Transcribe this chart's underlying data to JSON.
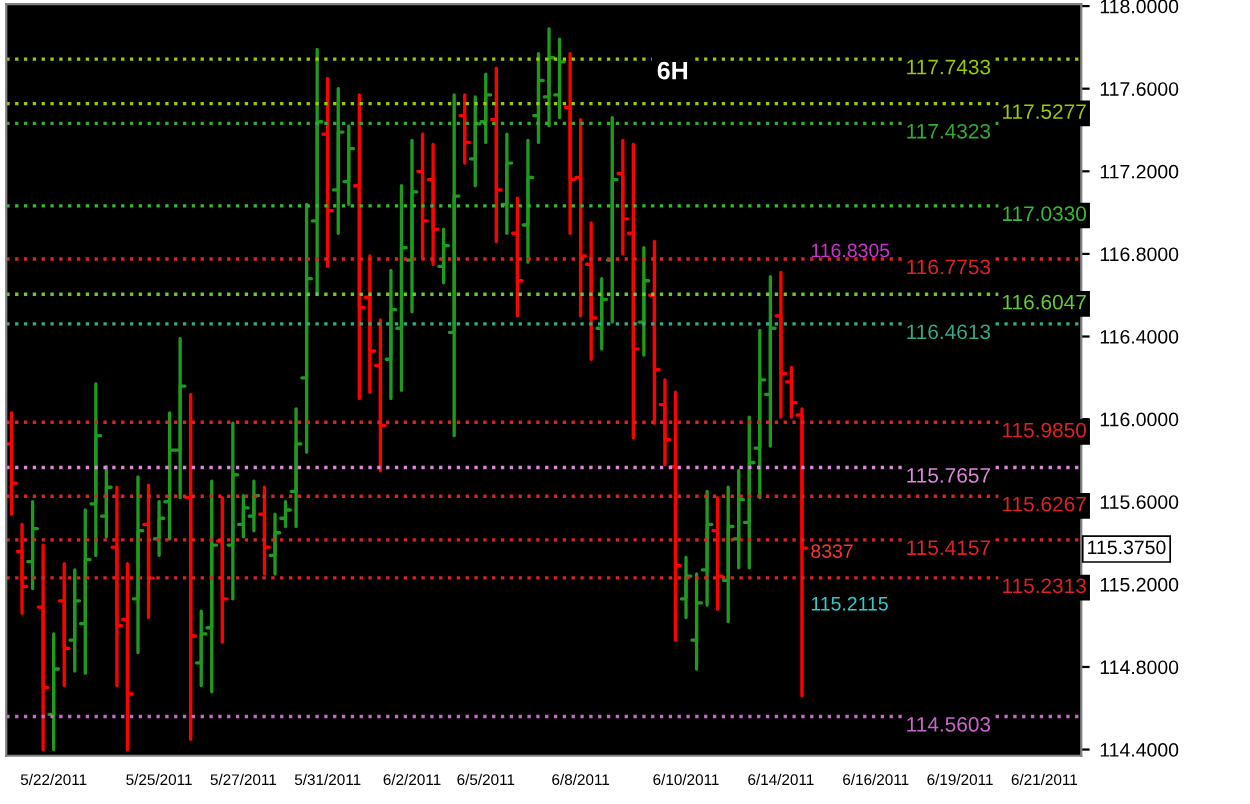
{
  "chart_data": {
    "type": "candlestick",
    "subtitle": "6H",
    "categories": [
      null,
      null,
      null,
      null,
      "5/22/2011",
      null,
      null,
      null,
      null,
      null,
      null,
      null,
      null,
      null,
      "5/25/2011",
      null,
      null,
      null,
      null,
      null,
      null,
      null,
      "5/27/2011",
      null,
      null,
      null,
      null,
      null,
      null,
      null,
      "5/31/2011",
      null,
      null,
      null,
      null,
      null,
      null,
      null,
      "6/2/2011",
      null,
      null,
      null,
      null,
      null,
      null,
      "6/5/2011",
      null,
      null,
      null,
      null,
      null,
      null,
      null,
      null,
      "6/8/2011",
      null,
      null,
      null,
      null,
      null,
      null,
      null,
      null,
      null,
      "6/10/2011",
      null,
      null,
      null,
      null,
      null,
      null,
      null,
      null,
      "6/14/2011",
      null,
      null,
      null,
      null,
      null,
      null,
      null,
      null,
      "6/16/2011",
      null,
      null,
      null,
      null,
      null,
      null,
      null,
      "6/19/2011",
      null,
      null,
      null,
      null,
      null,
      null,
      null,
      "6/21/2011",
      null,
      null,
      null
    ],
    "ohlc": [
      [
        115.88,
        116.03,
        115.54,
        115.69
      ],
      [
        115.36,
        115.49,
        115.06,
        115.19
      ],
      [
        115.31,
        115.6,
        115.18,
        115.47
      ],
      [
        115.09,
        115.39,
        114.4,
        114.7
      ],
      [
        114.57,
        114.96,
        114.4,
        114.79
      ],
      [
        115.12,
        115.3,
        114.71,
        114.89
      ],
      [
        114.93,
        115.27,
        114.78,
        115.12
      ],
      [
        115.01,
        115.56,
        114.77,
        115.32
      ],
      [
        115.59,
        116.17,
        115.34,
        115.92
      ],
      [
        115.53,
        115.77,
        115.43,
        115.67
      ],
      [
        115.38,
        115.67,
        114.71,
        115.0
      ],
      [
        115.03,
        115.3,
        114.4,
        114.67
      ],
      [
        115.13,
        115.72,
        114.87,
        115.46
      ],
      [
        115.49,
        115.68,
        115.04,
        115.23
      ],
      [
        115.42,
        115.6,
        115.34,
        115.52
      ],
      [
        115.6,
        116.03,
        115.42,
        115.85
      ],
      [
        115.85,
        116.39,
        115.62,
        116.16
      ],
      [
        115.62,
        116.12,
        114.45,
        114.95
      ],
      [
        114.82,
        115.07,
        114.71,
        114.96
      ],
      [
        114.99,
        115.7,
        114.68,
        115.39
      ],
      [
        115.41,
        115.62,
        114.92,
        115.13
      ],
      [
        115.39,
        115.98,
        115.13,
        115.73
      ],
      [
        115.49,
        115.63,
        115.43,
        115.57
      ],
      [
        115.53,
        115.7,
        115.46,
        115.63
      ],
      [
        115.54,
        115.67,
        115.25,
        115.38
      ],
      [
        115.34,
        115.54,
        115.25,
        115.45
      ],
      [
        115.52,
        115.6,
        115.48,
        115.56
      ],
      [
        115.65,
        116.05,
        115.48,
        115.88
      ],
      [
        116.2,
        117.04,
        115.84,
        116.68
      ],
      [
        116.96,
        117.79,
        116.61,
        117.44
      ],
      [
        117.38,
        117.65,
        116.74,
        117.01
      ],
      [
        117.11,
        117.6,
        116.9,
        117.39
      ],
      [
        117.15,
        117.42,
        117.04,
        117.31
      ],
      [
        117.13,
        117.57,
        116.1,
        116.54
      ],
      [
        116.59,
        116.79,
        116.13,
        116.33
      ],
      [
        116.26,
        116.48,
        115.75,
        115.97
      ],
      [
        116.29,
        116.72,
        116.1,
        116.53
      ],
      [
        116.44,
        117.13,
        116.14,
        116.83
      ],
      [
        116.77,
        117.35,
        116.52,
        117.1
      ],
      [
        117.2,
        117.38,
        116.78,
        116.96
      ],
      [
        117.16,
        117.33,
        116.75,
        116.92
      ],
      [
        116.74,
        116.92,
        116.66,
        116.84
      ],
      [
        116.42,
        117.57,
        115.92,
        117.08
      ],
      [
        117.47,
        117.57,
        117.24,
        117.34
      ],
      [
        117.26,
        117.56,
        117.13,
        117.43
      ],
      [
        117.44,
        117.67,
        117.34,
        117.57
      ],
      [
        117.45,
        117.7,
        116.86,
        117.11
      ],
      [
        117.04,
        117.38,
        116.9,
        117.24
      ],
      [
        116.9,
        117.07,
        116.5,
        116.67
      ],
      [
        116.94,
        117.35,
        116.76,
        117.17
      ],
      [
        117.47,
        117.77,
        117.34,
        117.64
      ],
      [
        117.56,
        117.89,
        117.42,
        117.75
      ],
      [
        117.57,
        117.84,
        117.46,
        117.73
      ],
      [
        117.51,
        117.77,
        116.9,
        117.16
      ],
      [
        117.17,
        117.45,
        116.5,
        116.79
      ],
      [
        116.75,
        116.95,
        116.29,
        116.49
      ],
      [
        116.44,
        116.68,
        116.34,
        116.58
      ],
      [
        116.77,
        117.46,
        116.47,
        117.16
      ],
      [
        117.19,
        117.35,
        116.8,
        116.97
      ],
      [
        116.9,
        117.33,
        115.91,
        116.34
      ],
      [
        116.47,
        116.83,
        116.31,
        116.67
      ],
      [
        116.6,
        116.86,
        115.98,
        116.24
      ],
      [
        116.07,
        116.19,
        115.78,
        115.9
      ],
      [
        115.77,
        116.13,
        114.93,
        115.29
      ],
      [
        115.13,
        115.33,
        115.04,
        115.24
      ],
      [
        114.93,
        115.25,
        114.79,
        115.11
      ],
      [
        115.27,
        115.65,
        115.1,
        115.49
      ],
      [
        115.46,
        115.62,
        115.08,
        115.24
      ],
      [
        115.22,
        115.67,
        115.02,
        115.48
      ],
      [
        115.42,
        115.75,
        115.28,
        115.61
      ],
      [
        115.5,
        116.01,
        115.28,
        115.79
      ],
      [
        115.86,
        116.43,
        115.62,
        116.19
      ],
      [
        116.12,
        116.69,
        115.87,
        116.44
      ],
      [
        116.5,
        116.71,
        116.01,
        116.22
      ],
      [
        116.18,
        116.25,
        116.01,
        116.08
      ],
      [
        116.02,
        116.05,
        114.66,
        115.375
      ],
      null,
      null,
      null,
      null,
      null,
      null,
      null,
      null,
      null,
      null,
      null,
      null,
      null,
      null,
      null,
      null,
      null,
      null,
      null,
      null,
      null,
      null,
      null,
      null,
      null,
      null
    ],
    "colors": [
      "#ff0000",
      "#ff0000",
      "#1f9a1f",
      "#ff0000",
      "#1f9a1f",
      "#ff0000",
      "#1f9a1f",
      "#1f9a1f",
      "#1f9a1f",
      "#1f9a1f",
      "#ff0000",
      "#ff0000",
      "#1f9a1f",
      "#ff0000",
      "#1f9a1f",
      "#1f9a1f",
      "#1f9a1f",
      "#ff0000",
      "#1f9a1f",
      "#1f9a1f",
      "#ff0000",
      "#1f9a1f",
      "#1f9a1f",
      "#1f9a1f",
      "#ff0000",
      "#1f9a1f",
      "#1f9a1f",
      "#1f9a1f",
      "#1f9a1f",
      "#1f9a1f",
      "#ff0000",
      "#1f9a1f",
      "#1f9a1f",
      "#ff0000",
      "#ff0000",
      "#ff0000",
      "#1f9a1f",
      "#1f9a1f",
      "#1f9a1f",
      "#ff0000",
      "#ff0000",
      "#1f9a1f",
      "#1f9a1f",
      "#ff0000",
      "#1f9a1f",
      "#1f9a1f",
      "#ff0000",
      "#1f9a1f",
      "#ff0000",
      "#1f9a1f",
      "#1f9a1f",
      "#1f9a1f",
      "#1f9a1f",
      "#ff0000",
      "#ff0000",
      "#ff0000",
      "#1f9a1f",
      "#1f9a1f",
      "#ff0000",
      "#ff0000",
      "#1f9a1f",
      "#ff0000",
      "#ff0000",
      "#ff0000",
      "#1f9a1f",
      "#1f9a1f",
      "#1f9a1f",
      "#ff0000",
      "#1f9a1f",
      "#1f9a1f",
      "#1f9a1f",
      "#1f9a1f",
      "#1f9a1f",
      "#ff0000",
      "#ff0000",
      "#ff0000",
      null,
      null,
      null,
      null,
      null,
      null,
      null,
      null,
      null,
      null,
      null,
      null,
      null,
      null,
      null,
      null,
      null,
      null,
      null,
      null,
      null,
      null,
      null,
      null,
      null,
      null
    ],
    "ylim": [
      114.37,
      118.01
    ],
    "yticks": [
      {
        "value": 114.4,
        "label": "114.4000"
      },
      {
        "value": 114.8,
        "label": "114.8000"
      },
      {
        "value": 115.2,
        "label": "115.2000"
      },
      {
        "value": 115.6,
        "label": "115.6000"
      },
      {
        "value": 116.0,
        "label": "116.0000"
      },
      {
        "value": 116.4,
        "label": "116.4000"
      },
      {
        "value": 116.8,
        "label": "116.8000"
      },
      {
        "value": 117.2,
        "label": "117.2000"
      },
      {
        "value": 117.6,
        "label": "117.6000"
      },
      {
        "value": 118.0,
        "label": "118.0000"
      }
    ],
    "ref_lines": [
      {
        "axis": "y",
        "value": 117.7433,
        "label": "117.7433",
        "color": "#99cc00",
        "line_style": "dotted"
      },
      {
        "axis": "y",
        "value": 117.5277,
        "label": "117.5277",
        "color": "#99cc00",
        "line_style": "dotted"
      },
      {
        "axis": "y",
        "value": 117.4323,
        "label": "117.4323",
        "color": "#33aa33",
        "line_style": "dotted"
      },
      {
        "axis": "y",
        "value": 117.033,
        "label": "117.0330",
        "color": "#33bb33",
        "line_style": "dotted"
      },
      {
        "axis": "y",
        "value": 116.7753,
        "label": "116.7753",
        "color": "#dd2222",
        "line_style": "dotted"
      },
      {
        "axis": "y",
        "value": 116.6047,
        "label": "116.6047",
        "color": "#66cc33",
        "line_style": "dotted"
      },
      {
        "axis": "y",
        "value": 116.4613,
        "label": "116.4613",
        "color": "#33aa88",
        "line_style": "dotted"
      },
      {
        "axis": "y",
        "value": 115.985,
        "label": "115.9850",
        "color": "#dd2222",
        "line_style": "dotted"
      },
      {
        "axis": "y",
        "value": 115.7657,
        "label": "115.7657",
        "color": "#dd88dd",
        "line_style": "dotted"
      },
      {
        "axis": "y",
        "value": 115.6267,
        "label": "115.6267",
        "color": "#dd2222",
        "line_style": "dotted"
      },
      {
        "axis": "y",
        "value": 115.4157,
        "label": "115.4157",
        "color": "#dd2222",
        "line_style": "dotted"
      },
      {
        "axis": "y",
        "value": 115.2313,
        "label": "115.2313",
        "color": "#dd2222",
        "line_style": "dotted"
      },
      {
        "axis": "y",
        "value": 114.5603,
        "label": "114.5603",
        "color": "#cc66cc",
        "line_style": "dotted"
      }
    ],
    "annotations": [
      "116.8305",
      "8337",
      "115.2115",
      "115.3750"
    ],
    "grid": false,
    "legend": false
  }
}
